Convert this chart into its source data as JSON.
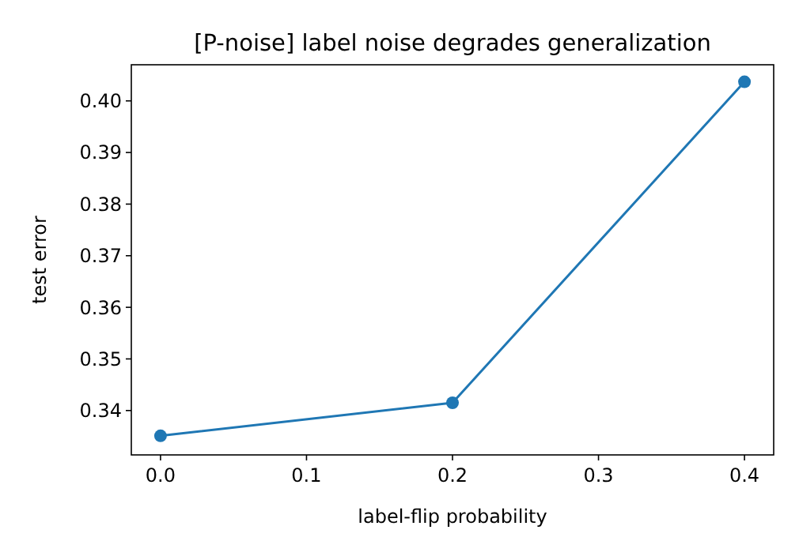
{
  "chart_data": {
    "type": "line",
    "title": "[P-noise] label noise degrades generalization",
    "xlabel": "label-flip probability",
    "ylabel": "test error",
    "x": [
      0.0,
      0.2,
      0.4
    ],
    "series": [
      {
        "color": "#1f77b4",
        "values": [
          0.3351,
          0.3415,
          0.4037
        ]
      }
    ],
    "marker": "circle",
    "xlim": [
      -0.02,
      0.42
    ],
    "ylim": [
      0.3314,
      0.407
    ],
    "xticks": [
      {
        "value": 0,
        "label": "0.0"
      },
      0.1,
      0.2,
      0.3,
      0.4
    ],
    "yticks": [
      0.34,
      0.35,
      0.36,
      0.37,
      0.38,
      0.39,
      {
        "value": 0.4,
        "label": "0.40"
      }
    ]
  }
}
